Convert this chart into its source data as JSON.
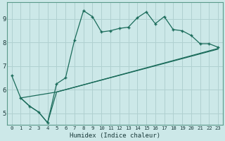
{
  "xlabel": "Humidex (Indice chaleur)",
  "bg_color": "#cce8e8",
  "grid_color": "#b0d0d0",
  "line_color": "#1a6b5a",
  "xlim": [
    -0.5,
    23.5
  ],
  "ylim": [
    4.5,
    9.7
  ],
  "xticks": [
    0,
    1,
    2,
    3,
    4,
    5,
    6,
    7,
    8,
    9,
    10,
    11,
    12,
    13,
    14,
    15,
    16,
    17,
    18,
    19,
    20,
    21,
    22,
    23
  ],
  "yticks": [
    5,
    6,
    7,
    8,
    9
  ],
  "line1_x": [
    0,
    1,
    2,
    3,
    4,
    5,
    6,
    7,
    8,
    9,
    10,
    11,
    12,
    13,
    14,
    15,
    16,
    17,
    18,
    19,
    20,
    21,
    22,
    23
  ],
  "line1_y": [
    6.6,
    5.65,
    5.3,
    5.05,
    4.6,
    6.25,
    6.5,
    8.1,
    9.35,
    9.1,
    8.45,
    8.5,
    8.6,
    8.65,
    9.05,
    9.3,
    8.8,
    9.1,
    8.55,
    8.5,
    8.3,
    7.95,
    7.95,
    7.8
  ],
  "line2_x": [
    1,
    2,
    3,
    4,
    5,
    23
  ],
  "line2_y": [
    5.65,
    5.3,
    5.05,
    4.6,
    5.9,
    7.75
  ],
  "line3_x": [
    1,
    5,
    23
  ],
  "line3_y": [
    5.65,
    5.9,
    7.72
  ]
}
